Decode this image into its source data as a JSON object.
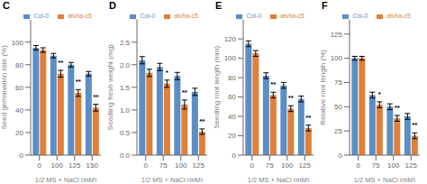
{
  "chart_data": [
    {
      "type": "bar",
      "title": "C",
      "x_label": "1/2 MS + NaCl (mM)",
      "y_label": "Seed germination rate (%)",
      "categories": [
        "0",
        "100",
        "125",
        "150"
      ],
      "series": [
        {
          "name": "Col-0",
          "color": "#5b8ec4",
          "values": [
            95,
            88,
            80,
            72
          ],
          "errors": [
            2,
            2,
            2,
            2
          ]
        },
        {
          "name": "atvha-c5",
          "color": "#e07f3a",
          "values": [
            93,
            72,
            55,
            42
          ],
          "errors": [
            2,
            3,
            3,
            3
          ]
        }
      ],
      "ylim": [
        0,
        120
      ],
      "yticks": [
        0,
        20,
        40,
        60,
        80,
        100
      ],
      "legend": "upper right",
      "annotations": [
        {
          "category": "100",
          "series": "atvha-c5",
          "text": "**"
        },
        {
          "category": "125",
          "series": "atvha-c5",
          "text": "**"
        },
        {
          "category": "150",
          "series": "atvha-c5",
          "text": "**"
        }
      ]
    },
    {
      "type": "bar",
      "title": "D",
      "x_label": "1/2 MS + NaCl (mM)",
      "y_label": "Seedling fresh weight (mg)",
      "categories": [
        "0",
        "75",
        "100",
        "125"
      ],
      "series": [
        {
          "name": "Col-0",
          "color": "#5b8ec4",
          "values": [
            2.1,
            1.95,
            1.75,
            1.4
          ],
          "errors": [
            0.08,
            0.08,
            0.08,
            0.08
          ]
        },
        {
          "name": "atvha-c5",
          "color": "#e07f3a",
          "values": [
            1.82,
            1.58,
            1.12,
            0.52
          ],
          "errors": [
            0.08,
            0.08,
            0.1,
            0.06
          ]
        }
      ],
      "ylim": [
        0,
        3.0
      ],
      "yticks": [
        {
          "value": 0,
          "label": "0.0"
        },
        0.5,
        {
          "value": 1,
          "label": "1.0"
        },
        1.5,
        {
          "value": 2,
          "label": "2.0"
        },
        2.5
      ],
      "legend": "upper right",
      "annotations": [
        {
          "category": "75",
          "series": "atvha-c5",
          "text": "*"
        },
        {
          "category": "100",
          "series": "atvha-c5",
          "text": "**"
        },
        {
          "category": "125",
          "series": "atvha-c5",
          "text": "**"
        }
      ]
    },
    {
      "type": "bar",
      "title": "E",
      "x_label": "1/2 MS + NaCl (mM)",
      "y_label": "Seedling root length (mm)",
      "categories": [
        "0",
        "75",
        "100",
        "125"
      ],
      "series": [
        {
          "name": "Col-0",
          "color": "#5b8ec4",
          "values": [
            115,
            82,
            72,
            58
          ],
          "errors": [
            3,
            3,
            3,
            3
          ]
        },
        {
          "name": "atvha-c5",
          "color": "#e07f3a",
          "values": [
            105,
            62,
            48,
            28
          ],
          "errors": [
            3,
            3,
            3,
            3
          ]
        }
      ],
      "ylim": [
        0,
        140
      ],
      "yticks": [
        0,
        20,
        40,
        60,
        80,
        100,
        120
      ],
      "legend": "upper right",
      "annotations": [
        {
          "category": "75",
          "series": "atvha-c5",
          "text": "**"
        },
        {
          "category": "100",
          "series": "atvha-c5",
          "text": "**"
        },
        {
          "category": "125",
          "series": "atvha-c5",
          "text": "**"
        }
      ]
    },
    {
      "type": "bar",
      "title": "F",
      "x_label": "1/2 MS + NaCl (mM)",
      "y_label": "Relative root length (%)",
      "categories": [
        "0",
        "75",
        "100",
        "125"
      ],
      "series": [
        {
          "name": "Col-0",
          "color": "#5b8ec4",
          "values": [
            100,
            62,
            50,
            40
          ],
          "errors": [
            2,
            3,
            3,
            3
          ]
        },
        {
          "name": "atvha-c5",
          "color": "#e07f3a",
          "values": [
            100,
            52,
            38,
            20
          ],
          "errors": [
            2,
            3,
            3,
            3
          ]
        }
      ],
      "ylim": [
        0,
        140
      ],
      "yticks": [
        0,
        25,
        50,
        75,
        100,
        125
      ],
      "legend": "upper right",
      "annotations": [
        {
          "category": "75",
          "series": "atvha-c5",
          "text": "*"
        },
        {
          "category": "100",
          "series": "atvha-c5",
          "text": "**"
        },
        {
          "category": "125",
          "series": "atvha-c5",
          "text": "**"
        }
      ]
    }
  ]
}
